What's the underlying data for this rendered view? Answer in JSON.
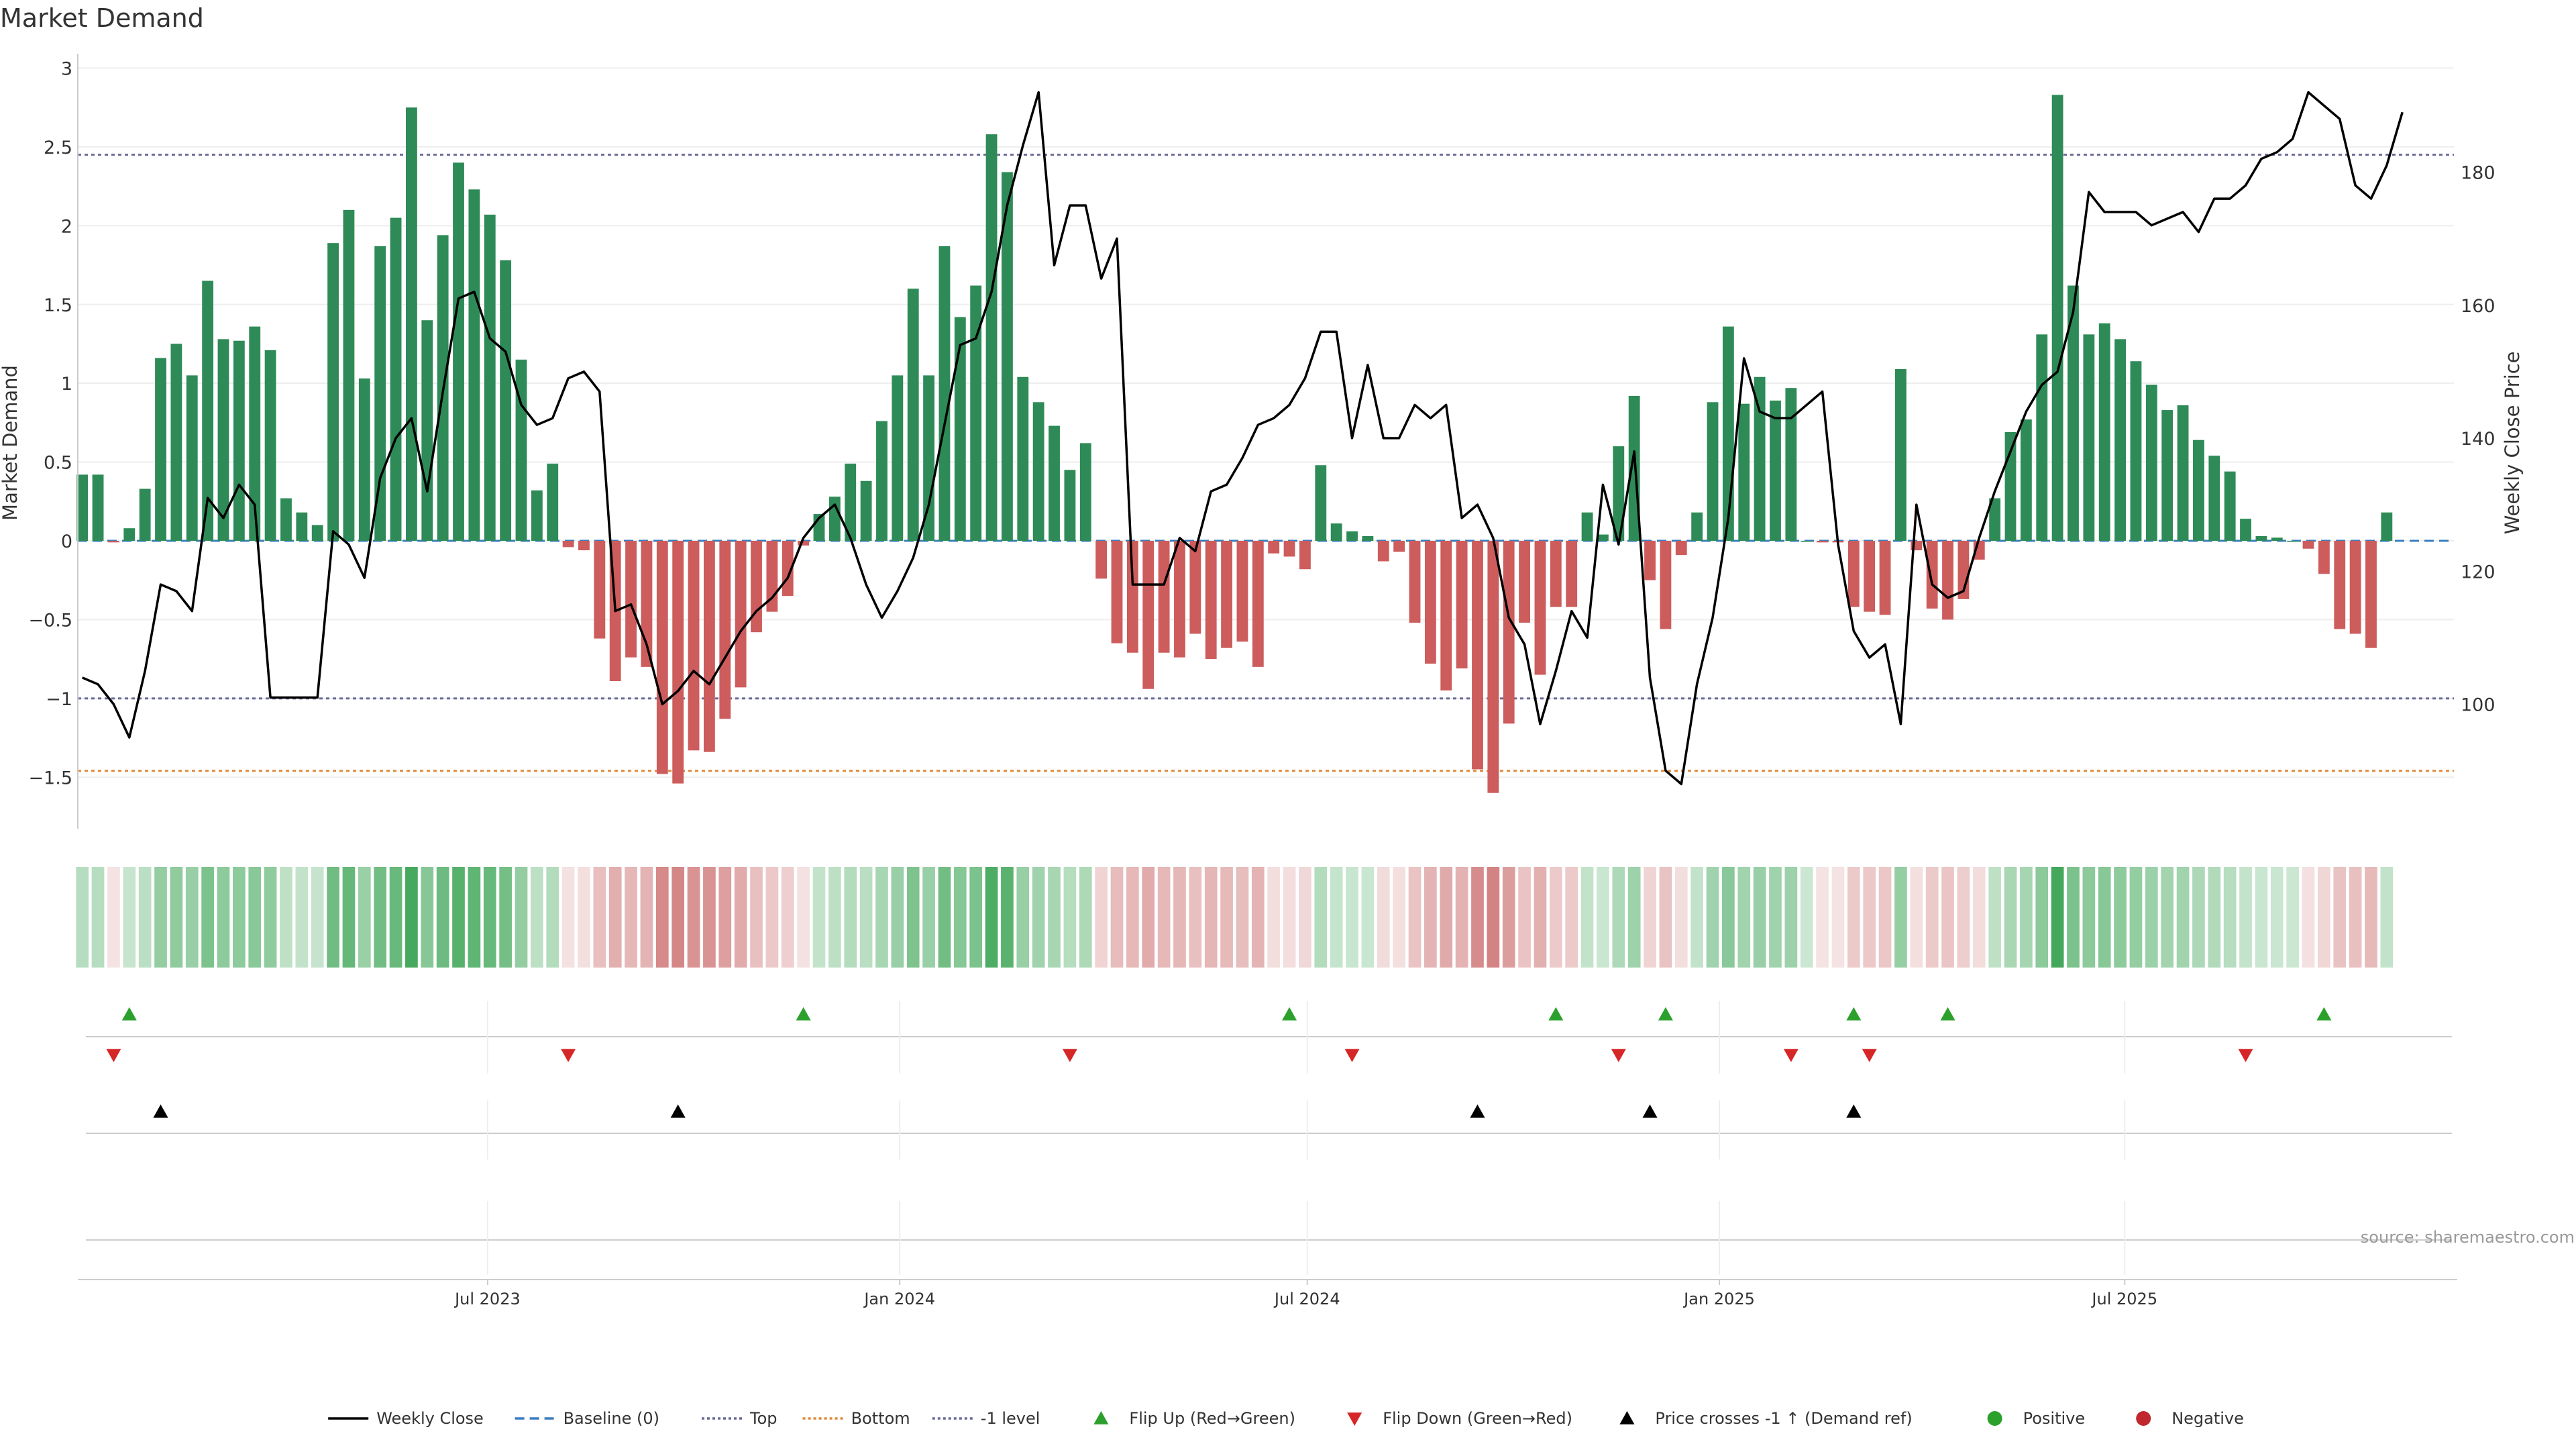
{
  "chart_data": {
    "type": "bar",
    "title": "Market Demand",
    "ylabel": "Market Demand",
    "y2label": "Weekly Close Price",
    "ylim": [
      -1.85,
      3.0
    ],
    "y2lim": [
      83,
      195
    ],
    "yticks": [
      3,
      2.5,
      2,
      1.5,
      1,
      0.5,
      0,
      -0.5,
      -1,
      -1.5
    ],
    "ytick_labels": [
      "3",
      "2.5",
      "2",
      "1.5",
      "1",
      "0.5",
      "0",
      "−0.5",
      "−1",
      "−1.5"
    ],
    "y2ticks": [
      180,
      160,
      140,
      120,
      100
    ],
    "x_axis": {
      "start_date": "2023-01-01",
      "week_days": 7,
      "date_min": "2022-12-30",
      "date_max": "2025-11-25",
      "ticks": [
        {
          "label": "Jul 2023",
          "date": "2023-07-01"
        },
        {
          "label": "Jan 2024",
          "date": "2024-01-01"
        },
        {
          "label": "Jul 2024",
          "date": "2024-07-01"
        },
        {
          "label": "Jan 2025",
          "date": "2025-01-01"
        },
        {
          "label": "Jul 2025",
          "date": "2025-07-01"
        }
      ]
    },
    "levels": {
      "top": 2.45,
      "bottom": -1.46,
      "minus_one": -1.0,
      "baseline": 0
    },
    "series": [
      {
        "name": "Market Demand",
        "values": [
          0.42,
          0.42,
          -0.01,
          0.08,
          0.33,
          1.16,
          1.25,
          1.05,
          1.65,
          1.28,
          1.27,
          1.36,
          1.21,
          0.27,
          0.18,
          0.1,
          1.89,
          2.1,
          1.03,
          1.87,
          2.05,
          2.75,
          1.4,
          1.94,
          2.4,
          2.23,
          2.07,
          1.78,
          1.15,
          0.32,
          0.49,
          -0.04,
          -0.06,
          -0.62,
          -0.89,
          -0.74,
          -0.8,
          -1.48,
          -1.54,
          -1.33,
          -1.34,
          -1.13,
          -0.93,
          -0.58,
          -0.45,
          -0.35,
          -0.03,
          0.17,
          0.28,
          0.49,
          0.38,
          0.76,
          1.05,
          1.6,
          1.05,
          1.87,
          1.42,
          1.62,
          2.58,
          2.34,
          1.04,
          0.88,
          0.73,
          0.45,
          0.62,
          -0.24,
          -0.65,
          -0.71,
          -0.94,
          -0.71,
          -0.74,
          -0.59,
          -0.75,
          -0.68,
          -0.64,
          -0.8,
          -0.08,
          -0.1,
          -0.18,
          0.48,
          0.11,
          0.06,
          0.03,
          -0.13,
          -0.07,
          -0.52,
          -0.78,
          -0.95,
          -0.81,
          -1.45,
          -1.6,
          -1.16,
          -0.52,
          -0.85,
          -0.42,
          -0.42,
          0.18,
          0.04,
          0.6,
          0.92,
          -0.25,
          -0.56,
          -0.09,
          0.18,
          0.88,
          1.36,
          0.87,
          1.04,
          0.89,
          0.97,
          0.0,
          -0.01,
          -0.01,
          -0.42,
          -0.45,
          -0.47,
          1.09,
          -0.06,
          -0.43,
          -0.5,
          -0.37,
          -0.12,
          0.27,
          0.69,
          0.77,
          1.31,
          2.83,
          1.62,
          1.31,
          1.38,
          1.28,
          1.14,
          0.99,
          0.83,
          0.86,
          0.64,
          0.54,
          0.44,
          0.14,
          0.03,
          0.02,
          0.0,
          -0.05,
          -0.21,
          -0.56,
          -0.59,
          -0.68,
          0.18
        ]
      },
      {
        "name": "Weekly Close",
        "values": [
          104,
          103,
          100,
          95,
          105,
          118,
          117,
          114,
          131,
          128,
          133,
          130,
          101,
          101,
          101,
          101,
          126,
          124,
          119,
          134,
          140,
          143,
          132,
          147,
          161,
          162,
          155,
          153,
          145,
          142,
          143,
          149,
          150,
          147,
          114,
          115,
          109,
          100,
          102,
          105,
          103,
          107,
          111,
          114,
          116,
          119,
          125,
          128,
          130,
          125,
          118,
          113,
          117,
          122,
          130,
          142,
          154,
          155,
          162,
          175,
          184,
          192,
          166,
          175,
          175,
          164,
          170,
          118,
          118,
          118,
          125,
          123,
          132,
          133,
          137,
          142,
          143,
          145,
          149,
          156,
          156,
          140,
          151,
          140,
          140,
          145,
          143,
          145,
          128,
          130,
          125,
          113,
          109,
          97,
          105,
          114,
          110,
          133,
          124,
          138,
          104,
          90,
          88,
          103,
          113,
          128,
          152,
          144,
          143,
          143,
          145,
          147,
          124,
          111,
          107,
          109,
          97,
          130,
          118,
          116,
          117,
          125,
          132,
          138,
          144,
          148,
          150,
          159,
          177,
          174,
          174,
          174,
          172,
          173,
          174,
          171,
          176,
          176,
          178,
          182,
          183,
          185,
          192,
          190,
          188,
          178,
          176,
          181,
          189
        ]
      },
      {
        "name": "Baseline (0)"
      },
      {
        "name": "Top"
      },
      {
        "name": "Bottom"
      },
      {
        "name": "-1 level"
      }
    ],
    "flip_up_weeks": [
      3,
      46,
      77,
      94,
      101,
      113,
      119,
      143
    ],
    "flip_down_weeks": [
      2,
      31,
      63,
      81,
      98,
      109,
      114,
      138
    ],
    "price_cross_weeks": [
      5,
      38,
      89,
      100,
      113
    ],
    "legend": {
      "placement": "bottom-center",
      "items": [
        {
          "label": "Weekly Close",
          "kind": "line",
          "color": "#000000",
          "dash": ""
        },
        {
          "label": "Baseline (0)",
          "kind": "line",
          "color": "#3a7fc0",
          "dash": "14 8"
        },
        {
          "label": "Top",
          "kind": "line",
          "color": "#6a6a9a",
          "dash": "4 4"
        },
        {
          "label": "Bottom",
          "kind": "line",
          "color": "#e08a3a",
          "dash": "4 4"
        },
        {
          "label": "-1 level",
          "kind": "line",
          "color": "#6a6a9a",
          "dash": "4 4"
        },
        {
          "label": "Flip Up (Red→Green)",
          "kind": "tri-up",
          "color": "#2ca02c"
        },
        {
          "label": "Flip Down (Green→Red)",
          "kind": "tri-down",
          "color": "#d62728"
        },
        {
          "label": "Price crosses -1 ↑ (Demand ref)",
          "kind": "tri-up",
          "color": "#000000"
        },
        {
          "label": "Positive",
          "kind": "dot",
          "color": "#2ca02c"
        },
        {
          "label": "Negative",
          "kind": "dot",
          "color": "#c0282d"
        }
      ]
    },
    "source": "source: sharemaestro.com",
    "colors": {
      "positive_bar": "#2e8b57",
      "negative_bar": "#cd5c5c",
      "line": "#000000",
      "top": "#6a6a9a",
      "bottom": "#e08a3a",
      "minus_one": "#6a6a9a",
      "baseline": "#3a7fc0",
      "flip_up": "#2ca02c",
      "flip_down": "#d62728",
      "cross": "#000000",
      "grid": "#eeeeee",
      "axis": "#cccccc",
      "text": "#333333",
      "source_text": "#999999"
    }
  }
}
